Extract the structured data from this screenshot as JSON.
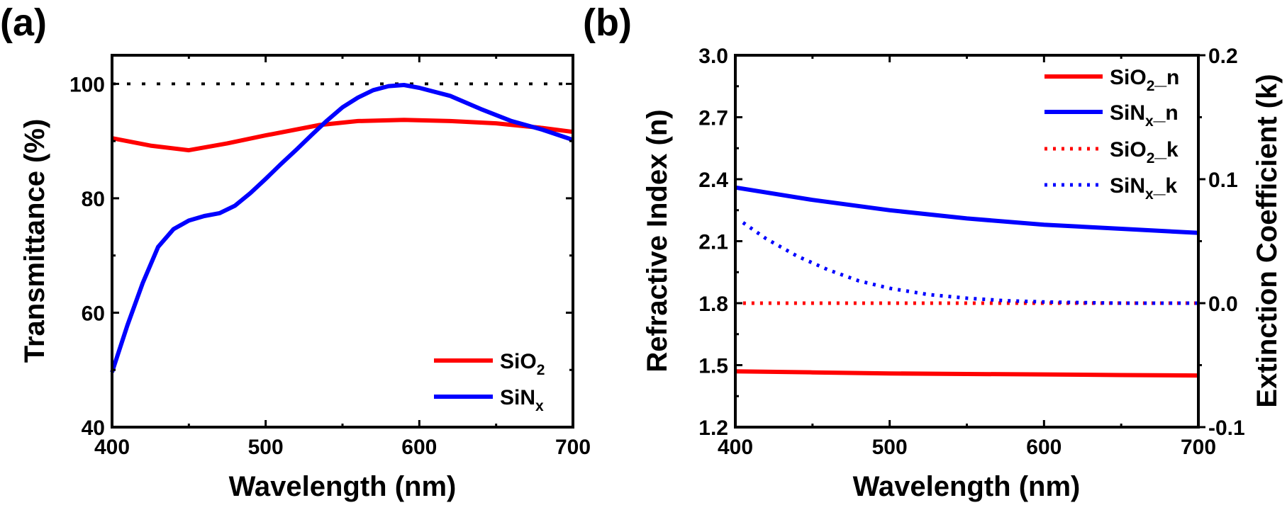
{
  "chart_data": [
    {
      "type": "line",
      "panel_label": "(a)",
      "xlabel": "Wavelength (nm)",
      "ylabel": "Transmittance (%)",
      "xlim": [
        400,
        700
      ],
      "ylim": [
        40,
        105
      ],
      "xticks": [
        400,
        500,
        600,
        700
      ],
      "yticks": [
        40,
        60,
        80,
        100
      ],
      "grid": false,
      "legend_position": "bottom-right",
      "reference_line": {
        "y": 100,
        "style": "dotted",
        "color": "#000000"
      },
      "series": [
        {
          "name": {
            "base": "SiO",
            "sub": "2",
            "suffix": ""
          },
          "color": "#ff0000",
          "style": "solid",
          "x": [
            400,
            425,
            450,
            475,
            500,
            535,
            560,
            590,
            620,
            650,
            680,
            700
          ],
          "y": [
            90.5,
            89.2,
            88.4,
            89.6,
            91.0,
            92.8,
            93.5,
            93.7,
            93.5,
            93.1,
            92.3,
            91.6
          ]
        },
        {
          "name": {
            "base": "SiN",
            "sub": "x",
            "suffix": ""
          },
          "color": "#0000ff",
          "style": "solid",
          "x": [
            400,
            410,
            420,
            430,
            440,
            450,
            460,
            470,
            480,
            490,
            500,
            510,
            520,
            530,
            540,
            550,
            560,
            570,
            580,
            590,
            600,
            620,
            640,
            660,
            680,
            700
          ],
          "y": [
            49.6,
            57.8,
            65.2,
            71.5,
            74.6,
            76.1,
            76.9,
            77.4,
            78.7,
            80.9,
            83.4,
            86.0,
            88.5,
            91.1,
            93.6,
            95.9,
            97.6,
            98.9,
            99.6,
            99.8,
            99.3,
            97.9,
            95.6,
            93.5,
            92.0,
            90.2
          ]
        }
      ]
    },
    {
      "type": "line",
      "panel_label": "(b)",
      "xlabel": "Wavelength (nm)",
      "ylabel": "Refractive Index (n)",
      "y2label": "Extinction Coefficient (k)",
      "xlim": [
        400,
        700
      ],
      "ylim": [
        1.2,
        3.0
      ],
      "y2lim": [
        -0.1,
        0.2
      ],
      "xticks": [
        400,
        500,
        600,
        700
      ],
      "yticks": [
        "1.2",
        "1.5",
        "1.8",
        "2.1",
        "2.4",
        "2.7",
        "3.0"
      ],
      "y2ticks": [
        "-0.1",
        "0.0",
        "0.1",
        "0.2"
      ],
      "grid": false,
      "legend_position": "top-right",
      "series": [
        {
          "name": {
            "base": "SiO",
            "sub": "2",
            "suffix": "_n"
          },
          "color": "#ff0000",
          "style": "solid",
          "axis": "left",
          "x": [
            400,
            450,
            500,
            550,
            600,
            650,
            700
          ],
          "y": [
            1.47,
            1.465,
            1.46,
            1.457,
            1.455,
            1.452,
            1.45
          ]
        },
        {
          "name": {
            "base": "SiN",
            "sub": "x",
            "suffix": "_n"
          },
          "color": "#0000ff",
          "style": "solid",
          "axis": "left",
          "x": [
            400,
            450,
            500,
            550,
            600,
            650,
            700
          ],
          "y": [
            2.36,
            2.3,
            2.25,
            2.21,
            2.18,
            2.16,
            2.14
          ]
        },
        {
          "name": {
            "base": "SiO",
            "sub": "2",
            "suffix": "_k"
          },
          "color": "#ff0000",
          "style": "dotted",
          "axis": "right",
          "x": [
            405,
            700
          ],
          "y": [
            0.0,
            0.0
          ]
        },
        {
          "name": {
            "base": "SiN",
            "sub": "x",
            "suffix": "_k"
          },
          "color": "#0000ff",
          "style": "dotted",
          "axis": "right",
          "x": [
            405,
            420,
            440,
            460,
            480,
            500,
            525,
            550,
            575,
            600,
            650,
            700
          ],
          "y": [
            0.065,
            0.052,
            0.038,
            0.027,
            0.018,
            0.012,
            0.007,
            0.004,
            0.002,
            0.001,
            0.0,
            0.0
          ]
        }
      ]
    }
  ]
}
